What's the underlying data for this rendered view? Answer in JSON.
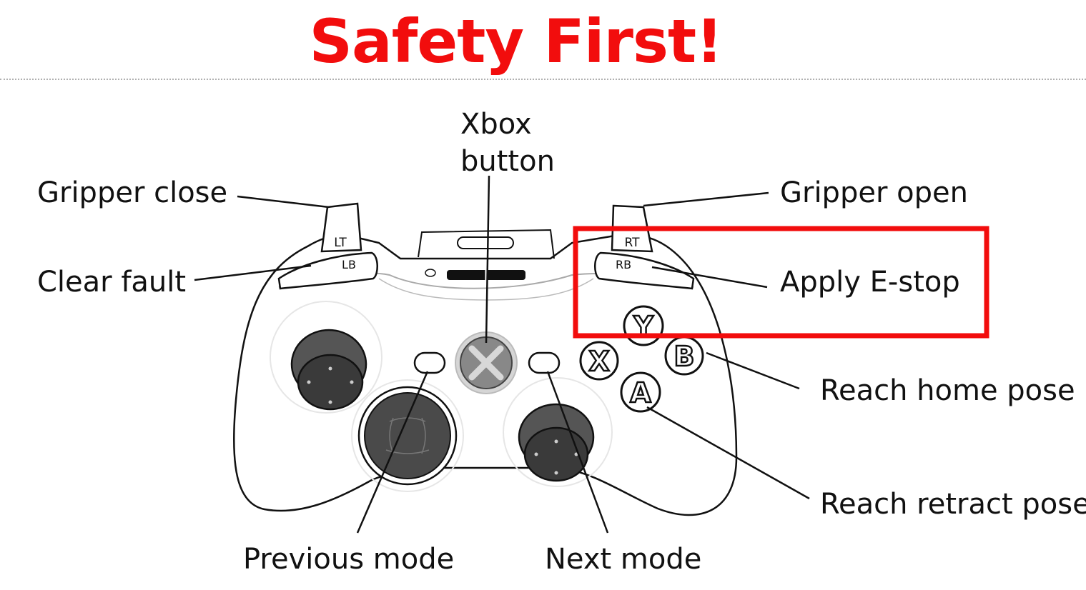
{
  "title": "Safety First!",
  "controller": {
    "triggers": {
      "left": "LT",
      "right": "RT"
    },
    "bumpers": {
      "left": "LB",
      "right": "RB"
    },
    "face_buttons": {
      "y": "Y",
      "b": "B",
      "x": "X",
      "a": "A"
    }
  },
  "callouts": {
    "xbox_button_line1": "Xbox",
    "xbox_button_line2": "button",
    "gripper_close": "Gripper close",
    "gripper_open": "Gripper open",
    "clear_fault": "Clear fault",
    "apply_estop": "Apply E-stop",
    "reach_home_pose": "Reach home pose",
    "reach_retract_pose": "Reach retract pose",
    "previous_mode": "Previous mode",
    "next_mode": "Next mode"
  },
  "highlight_color": "#f20d0d"
}
